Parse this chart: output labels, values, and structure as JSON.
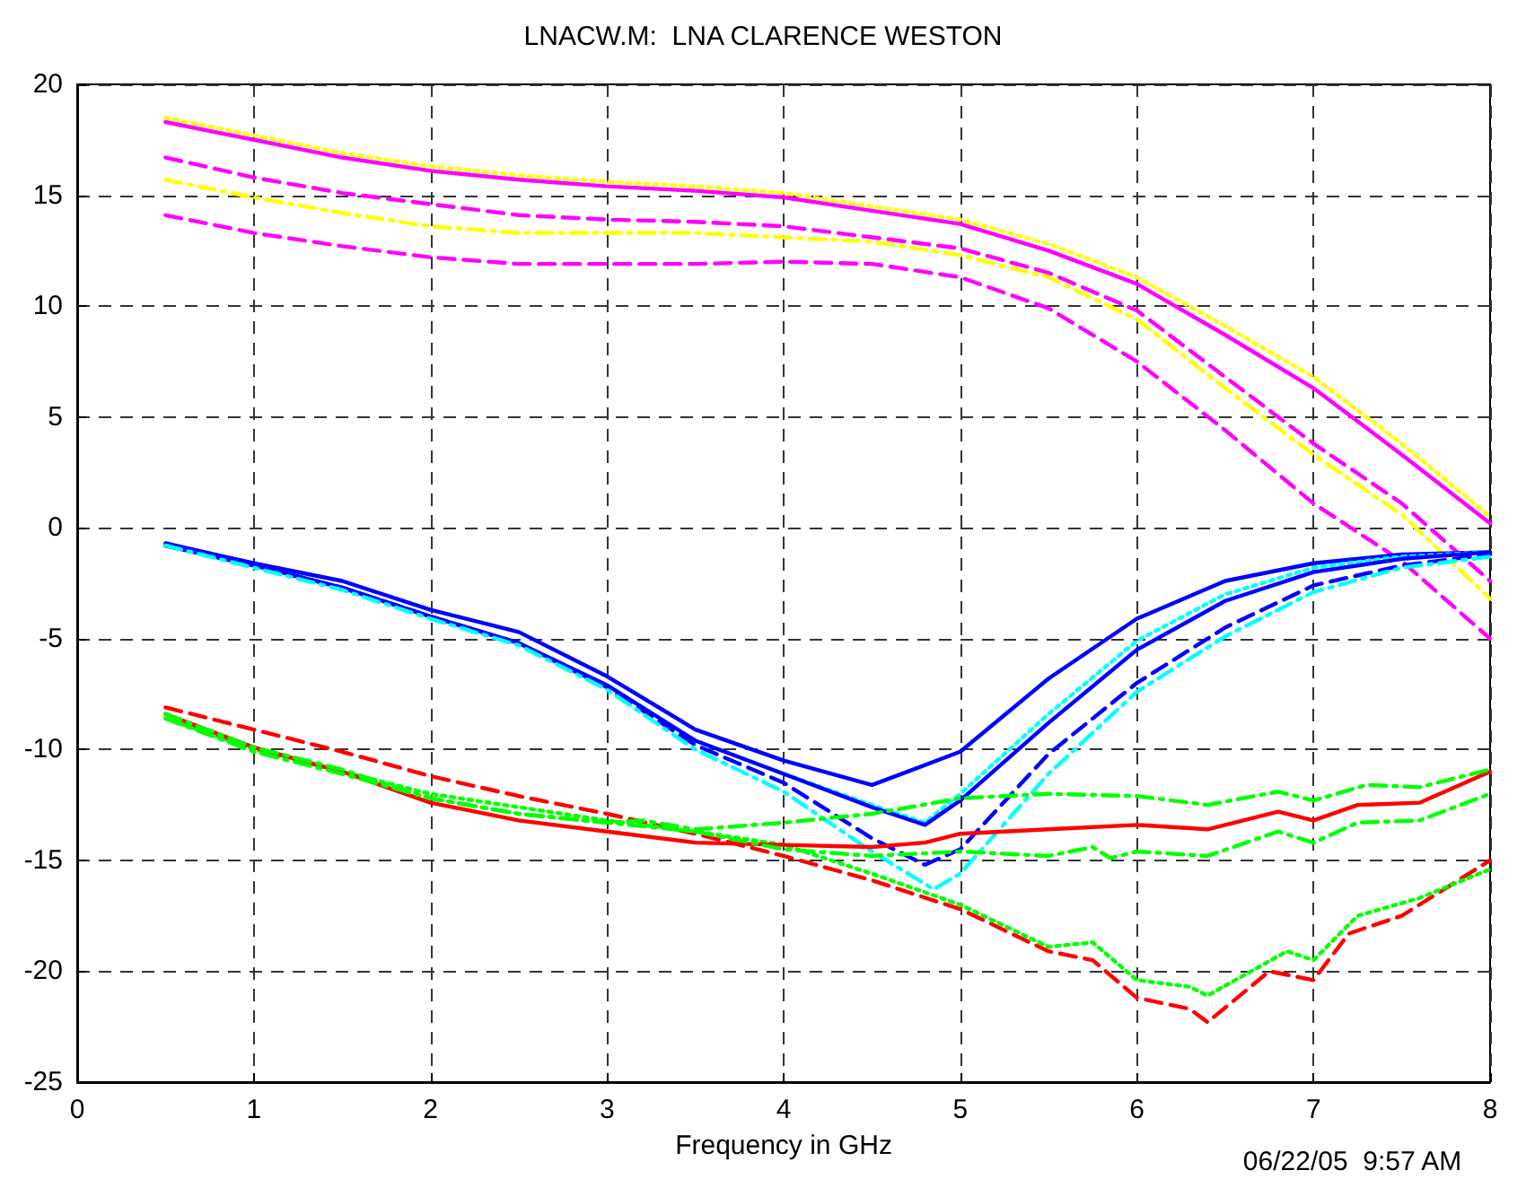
{
  "chart_data": {
    "type": "line",
    "title": "LNACW.M:  LNA CLARENCE WESTON",
    "xlabel": "Frequency in GHz",
    "annotations": [
      "06/22/05  9:57 AM"
    ],
    "xlim": [
      0,
      8
    ],
    "xticks": [
      0,
      1,
      2,
      3,
      4,
      5,
      6,
      7,
      8
    ],
    "ylim": [
      -25,
      20
    ],
    "yticks": [
      -25,
      -20,
      -15,
      -10,
      -5,
      0,
      5,
      10,
      15,
      20
    ],
    "grid": true,
    "marker": "none",
    "series": [
      {
        "color": "#ff00ff",
        "line_style": "solid",
        "x": [
          0.5,
          1,
          1.5,
          2,
          2.5,
          3,
          3.5,
          4,
          4.5,
          5,
          5.5,
          6,
          6.5,
          7,
          7.5,
          8
        ],
        "values": [
          18.3,
          17.5,
          16.7,
          16.1,
          15.7,
          15.4,
          15.2,
          14.9,
          14.3,
          13.7,
          12.5,
          11.0,
          8.7,
          6.3,
          3.3,
          0.2
        ]
      },
      {
        "color": "#ffff00",
        "line_style": "dotted",
        "x": [
          0.5,
          1,
          1.5,
          2,
          2.5,
          3,
          3.5,
          4,
          4.5,
          5,
          5.5,
          6,
          6.5,
          7,
          7.5,
          8
        ],
        "values": [
          18.5,
          17.7,
          16.9,
          16.3,
          15.9,
          15.6,
          15.4,
          15.1,
          14.5,
          13.9,
          12.8,
          11.3,
          9.1,
          6.8,
          3.8,
          0.5
        ]
      },
      {
        "color": "#ff00ff",
        "line_style": "dashed",
        "x": [
          0.5,
          1,
          1.5,
          2,
          2.5,
          3,
          3.5,
          4,
          4.5,
          5,
          5.5,
          6,
          6.5,
          7,
          7.5,
          8
        ],
        "values": [
          16.7,
          15.8,
          15.1,
          14.6,
          14.1,
          13.9,
          13.8,
          13.6,
          13.1,
          12.6,
          11.5,
          9.8,
          6.8,
          3.8,
          1.1,
          -2.4
        ]
      },
      {
        "color": "#ffff00",
        "line_style": "dashdot",
        "x": [
          0.5,
          1,
          1.5,
          2,
          2.5,
          3,
          3.5,
          4,
          4.5,
          5,
          5.5,
          6,
          6.5,
          7,
          7.5,
          8
        ],
        "values": [
          15.7,
          14.9,
          14.2,
          13.6,
          13.3,
          13.3,
          13.3,
          13.1,
          12.9,
          12.3,
          11.3,
          9.4,
          6.3,
          3.3,
          0.6,
          -3.2
        ]
      },
      {
        "color": "#ff00ff",
        "line_style": "dashed",
        "x": [
          0.5,
          1,
          1.5,
          2,
          2.5,
          3,
          3.5,
          4,
          4.5,
          5,
          5.5,
          6,
          6.5,
          7,
          7.5,
          8
        ],
        "values": [
          14.1,
          13.3,
          12.7,
          12.2,
          11.9,
          11.9,
          11.9,
          12.0,
          11.9,
          11.3,
          9.9,
          7.5,
          4.4,
          1.1,
          -1.5,
          -5.0
        ]
      },
      {
        "color": "#0000ff",
        "line_style": "solid",
        "x": [
          0.5,
          1,
          1.5,
          2,
          2.5,
          3,
          3.5,
          4,
          4.5,
          5,
          5.5,
          6,
          6.5,
          7,
          7.5,
          8
        ],
        "values": [
          -0.7,
          -1.6,
          -2.4,
          -3.7,
          -4.7,
          -6.7,
          -9.1,
          -10.5,
          -11.6,
          -10.1,
          -6.8,
          -4.1,
          -2.4,
          -1.6,
          -1.2,
          -1.1
        ]
      },
      {
        "color": "#00ffff",
        "line_style": "dotted",
        "x": [
          0.5,
          1,
          1.5,
          2,
          2.5,
          3,
          3.5,
          4,
          4.5,
          4.8,
          5,
          5.5,
          6,
          6.5,
          7,
          7.5,
          8
        ],
        "values": [
          -0.8,
          -1.7,
          -2.7,
          -4.0,
          -5.2,
          -7.1,
          -9.6,
          -11.1,
          -12.5,
          -13.3,
          -12.0,
          -8.4,
          -5.1,
          -3.0,
          -1.8,
          -1.3,
          -1.1
        ]
      },
      {
        "color": "#0000ff",
        "line_style": "solid",
        "x": [
          0.5,
          1,
          1.5,
          2,
          2.5,
          3,
          3.5,
          4,
          4.5,
          4.8,
          5,
          5.5,
          6,
          6.5,
          7,
          7.5,
          8
        ],
        "values": [
          -0.8,
          -1.7,
          -2.7,
          -4.0,
          -5.2,
          -7.1,
          -9.6,
          -11.1,
          -12.6,
          -13.4,
          -12.3,
          -8.8,
          -5.5,
          -3.3,
          -2.0,
          -1.4,
          -1.1
        ]
      },
      {
        "color": "#0000ff",
        "line_style": "dashed",
        "x": [
          0.5,
          1,
          1.5,
          2,
          2.5,
          3,
          3.5,
          4,
          4.5,
          4.8,
          5,
          5.5,
          6,
          6.5,
          7,
          7.5,
          8
        ],
        "values": [
          -0.8,
          -1.7,
          -2.7,
          -4.0,
          -5.2,
          -7.2,
          -9.8,
          -11.5,
          -14.0,
          -15.2,
          -14.5,
          -10.2,
          -7.0,
          -4.5,
          -2.6,
          -1.7,
          -1.2
        ]
      },
      {
        "color": "#00ffff",
        "line_style": "dashdot",
        "x": [
          0.5,
          1,
          1.5,
          2,
          2.5,
          3,
          3.5,
          4,
          4.5,
          4.85,
          5,
          5.5,
          6,
          6.5,
          7,
          7.5,
          8
        ],
        "values": [
          -0.8,
          -1.8,
          -2.8,
          -4.1,
          -5.3,
          -7.3,
          -10.0,
          -11.9,
          -14.6,
          -16.3,
          -15.6,
          -11.1,
          -7.4,
          -4.9,
          -2.9,
          -1.8,
          -1.3
        ]
      },
      {
        "color": "#ff0000",
        "line_style": "dashed",
        "x": [
          0.5,
          1,
          1.5,
          2,
          2.5,
          3,
          3.5,
          4,
          4.5,
          5,
          5.5,
          5.75,
          6,
          6.3,
          6.4,
          6.75,
          7,
          7.2,
          7.5,
          8
        ],
        "values": [
          -8.1,
          -9.1,
          -10.1,
          -11.2,
          -12.1,
          -12.9,
          -13.8,
          -14.8,
          -15.9,
          -17.2,
          -19.1,
          -19.5,
          -21.2,
          -21.7,
          -22.3,
          -20.0,
          -20.4,
          -18.3,
          -17.5,
          -15.0
        ]
      },
      {
        "color": "#00ff00",
        "line_style": "dotted",
        "x": [
          0.5,
          1,
          1.5,
          2,
          2.5,
          3,
          3.5,
          4,
          4.5,
          5,
          5.5,
          5.75,
          6,
          6.3,
          6.4,
          6.85,
          7,
          7.25,
          7.6,
          8
        ],
        "values": [
          -8.6,
          -10.0,
          -11.0,
          -12.0,
          -12.6,
          -13.2,
          -13.7,
          -14.3,
          -15.6,
          -17.0,
          -18.9,
          -18.7,
          -20.4,
          -20.7,
          -21.1,
          -19.1,
          -19.5,
          -17.5,
          -16.7,
          -15.4
        ]
      },
      {
        "color": "#ff0000",
        "line_style": "solid",
        "x": [
          0.5,
          1,
          1.5,
          2,
          2.5,
          3,
          3.5,
          4,
          4.5,
          4.8,
          5,
          5.5,
          6,
          6.4,
          6.8,
          7,
          7.25,
          7.6,
          8
        ],
        "values": [
          -8.4,
          -9.9,
          -11.0,
          -12.4,
          -13.2,
          -13.7,
          -14.2,
          -14.3,
          -14.4,
          -14.2,
          -13.8,
          -13.6,
          -13.4,
          -13.6,
          -12.8,
          -13.2,
          -12.5,
          -12.4,
          -11.0
        ]
      },
      {
        "color": "#00ff00",
        "line_style": "dashdot",
        "x": [
          0.5,
          1,
          1.5,
          2,
          2.5,
          3,
          3.2,
          3.5,
          4,
          4.5,
          5,
          5.5,
          6,
          6.4,
          6.8,
          7,
          7.3,
          7.6,
          8
        ],
        "values": [
          -8.4,
          -9.9,
          -10.9,
          -12.2,
          -12.9,
          -13.3,
          -13.2,
          -13.6,
          -13.3,
          -12.9,
          -12.2,
          -12.0,
          -12.1,
          -12.5,
          -11.9,
          -12.3,
          -11.6,
          -11.7,
          -10.9
        ]
      },
      {
        "color": "#00ff00",
        "line_style": "dashdot",
        "x": [
          0.5,
          1,
          1.5,
          2,
          2.5,
          3,
          3.5,
          4,
          4.5,
          5,
          5.5,
          5.75,
          5.85,
          6,
          6.4,
          6.8,
          7,
          7.25,
          7.6,
          8
        ],
        "values": [
          -8.6,
          -10.1,
          -11.1,
          -12.2,
          -12.9,
          -13.3,
          -13.7,
          -14.5,
          -14.8,
          -14.6,
          -14.8,
          -14.4,
          -14.9,
          -14.6,
          -14.8,
          -13.7,
          -14.2,
          -13.3,
          -13.2,
          -12.0
        ]
      }
    ]
  }
}
